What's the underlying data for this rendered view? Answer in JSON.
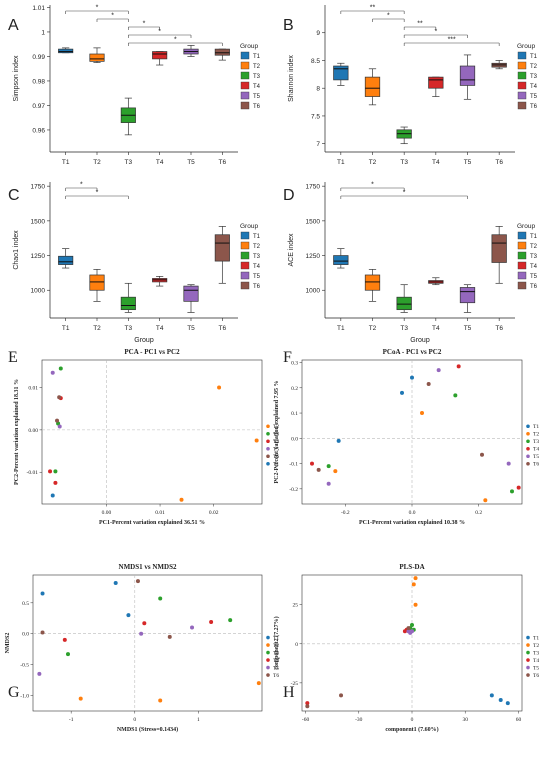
{
  "group_label": "Group",
  "legend_title": "Group",
  "colors": {
    "T1": "#1f77b4",
    "T2": "#ff7f0e",
    "T3": "#2ca02c",
    "T4": "#d62728",
    "T5": "#9467bd",
    "T6": "#8c564b"
  },
  "chart_data": [
    {
      "panel": "A",
      "type": "box",
      "ylabel": "Simpson index",
      "categories": [
        "T1",
        "T2",
        "T3",
        "T4",
        "T5",
        "T6"
      ],
      "ylim": [
        0.951,
        1.011
      ],
      "yticks": [
        0.96,
        0.97,
        0.98,
        0.99,
        1.0,
        1.01
      ],
      "yticklabels": [
        "0.96",
        "0.97",
        "0.98",
        "0.99",
        "1",
        "1.01"
      ],
      "boxes": [
        {
          "min": 0.9915,
          "q1": 0.9915,
          "median": 0.992,
          "q3": 0.993,
          "max": 0.9935
        },
        {
          "min": 0.9875,
          "q1": 0.988,
          "median": 0.989,
          "q3": 0.991,
          "max": 0.9935
        },
        {
          "min": 0.958,
          "q1": 0.963,
          "median": 0.966,
          "q3": 0.969,
          "max": 0.973
        },
        {
          "min": 0.9865,
          "q1": 0.989,
          "median": 0.991,
          "q3": 0.992,
          "max": 0.992
        },
        {
          "min": 0.99,
          "q1": 0.991,
          "median": 0.992,
          "q3": 0.993,
          "max": 0.9945
        },
        {
          "min": 0.9885,
          "q1": 0.9905,
          "median": 0.9915,
          "q3": 0.993,
          "max": 0.993
        }
      ],
      "significance": [
        {
          "from": 1,
          "to": 3,
          "label": "*"
        },
        {
          "from": 2,
          "to": 3,
          "label": "*"
        },
        {
          "from": 3,
          "to": 4,
          "label": "*"
        },
        {
          "from": 3,
          "to": 5,
          "label": "*"
        },
        {
          "from": 3,
          "to": 6,
          "label": "*"
        }
      ],
      "legend": [
        "T1",
        "T2",
        "T3",
        "T4",
        "T5",
        "T6"
      ]
    },
    {
      "panel": "B",
      "type": "box",
      "ylabel": "Shannon index",
      "categories": [
        "T1",
        "T2",
        "T3",
        "T4",
        "T5",
        "T6"
      ],
      "ylim": [
        6.85,
        9.5
      ],
      "yticks": [
        7,
        7.5,
        8,
        8.5,
        9
      ],
      "yticklabels": [
        "7",
        "7.5",
        "8",
        "8.5",
        "9"
      ],
      "boxes": [
        {
          "min": 8.05,
          "q1": 8.15,
          "median": 8.35,
          "q3": 8.4,
          "max": 8.45
        },
        {
          "min": 7.7,
          "q1": 7.85,
          "median": 8.0,
          "q3": 8.2,
          "max": 8.35
        },
        {
          "min": 7.0,
          "q1": 7.1,
          "median": 7.18,
          "q3": 7.25,
          "max": 7.3
        },
        {
          "min": 7.85,
          "q1": 8.0,
          "median": 8.15,
          "q3": 8.2,
          "max": 8.2
        },
        {
          "min": 7.8,
          "q1": 8.05,
          "median": 8.15,
          "q3": 8.4,
          "max": 8.6
        },
        {
          "min": 8.35,
          "q1": 8.38,
          "median": 8.42,
          "q3": 8.45,
          "max": 8.5
        }
      ],
      "significance": [
        {
          "from": 1,
          "to": 3,
          "label": "**"
        },
        {
          "from": 2,
          "to": 3,
          "label": "*"
        },
        {
          "from": 3,
          "to": 4,
          "label": "**"
        },
        {
          "from": 3,
          "to": 5,
          "label": "*"
        },
        {
          "from": 3,
          "to": 6,
          "label": "***"
        }
      ],
      "legend": [
        "T1",
        "T2",
        "T3",
        "T4",
        "T5",
        "T6"
      ]
    },
    {
      "panel": "C",
      "type": "box",
      "xlabel": "Group",
      "ylabel": "Chao1 index",
      "categories": [
        "T1",
        "T2",
        "T3",
        "T4",
        "T5",
        "T6"
      ],
      "ylim": [
        800,
        1780
      ],
      "yticks": [
        1000,
        1250,
        1500,
        1750
      ],
      "yticklabels": [
        "1000",
        "1250",
        "1500",
        "1750"
      ],
      "boxes": [
        {
          "min": 1160,
          "q1": 1185,
          "median": 1205,
          "q3": 1245,
          "max": 1300
        },
        {
          "min": 920,
          "q1": 1000,
          "median": 1060,
          "q3": 1110,
          "max": 1150
        },
        {
          "min": 840,
          "q1": 860,
          "median": 890,
          "q3": 950,
          "max": 1050
        },
        {
          "min": 1030,
          "q1": 1060,
          "median": 1075,
          "q3": 1085,
          "max": 1100
        },
        {
          "min": 840,
          "q1": 920,
          "median": 1000,
          "q3": 1030,
          "max": 1040
        },
        {
          "min": 1050,
          "q1": 1210,
          "median": 1340,
          "q3": 1400,
          "max": 1460
        }
      ],
      "significance": [
        {
          "from": 1,
          "to": 2,
          "label": "*"
        },
        {
          "from": 1,
          "to": 3,
          "label": "*"
        }
      ],
      "legend": [
        "T1",
        "T2",
        "T3",
        "T4",
        "T5",
        "T6"
      ]
    },
    {
      "panel": "D",
      "type": "box",
      "xlabel": "Group",
      "ylabel": "ACE index",
      "categories": [
        "T1",
        "T2",
        "T3",
        "T4",
        "T5",
        "T6"
      ],
      "ylim": [
        800,
        1780
      ],
      "yticks": [
        1000,
        1250,
        1500,
        1750
      ],
      "yticklabels": [
        "1000",
        "1250",
        "1500",
        "1750"
      ],
      "boxes": [
        {
          "min": 1160,
          "q1": 1185,
          "median": 1210,
          "q3": 1250,
          "max": 1300
        },
        {
          "min": 920,
          "q1": 1000,
          "median": 1060,
          "q3": 1110,
          "max": 1150
        },
        {
          "min": 840,
          "q1": 860,
          "median": 900,
          "q3": 950,
          "max": 1040
        },
        {
          "min": 1040,
          "q1": 1050,
          "median": 1060,
          "q3": 1070,
          "max": 1090
        },
        {
          "min": 840,
          "q1": 910,
          "median": 990,
          "q3": 1020,
          "max": 1040
        },
        {
          "min": 1050,
          "q1": 1200,
          "median": 1340,
          "q3": 1400,
          "max": 1460
        }
      ],
      "significance": [
        {
          "from": 1,
          "to": 3,
          "label": "*"
        },
        {
          "from": 1,
          "to": 5,
          "label": "*"
        }
      ],
      "legend": [
        "T1",
        "T2",
        "T3",
        "T4",
        "T5",
        "T6"
      ]
    },
    {
      "panel": "E",
      "type": "scatter",
      "title": "PCA - PC1 vs PC2",
      "xlabel": "PC1-Percent variation explained 36.51 %",
      "ylabel": "PC2-Percent variation explained 18.31 %",
      "xlim": [
        -0.012,
        0.029
      ],
      "ylim": [
        -0.0175,
        0.0165
      ],
      "xticks": [
        0.0,
        0.01,
        0.02
      ],
      "xticklabels": [
        "0.00",
        "0.01",
        "0.02"
      ],
      "yticks": [
        -0.01,
        0.0,
        0.01
      ],
      "yticklabels": [
        "-0.01",
        "0.00",
        "0.01"
      ],
      "legend": [
        "T2",
        "T3",
        "T4",
        "T5",
        "T6",
        "T1"
      ],
      "points": [
        {
          "g": "T1",
          "x": -0.01,
          "y": -0.0155
        },
        {
          "g": "T2",
          "x": 0.021,
          "y": 0.01
        },
        {
          "g": "T2",
          "x": 0.028,
          "y": -0.0025
        },
        {
          "g": "T2",
          "x": 0.014,
          "y": -0.0165
        },
        {
          "g": "T3",
          "x": -0.0085,
          "y": 0.0145
        },
        {
          "g": "T3",
          "x": -0.0095,
          "y": -0.0098
        },
        {
          "g": "T3",
          "x": -0.009,
          "y": 0.0015
        },
        {
          "g": "T4",
          "x": -0.0085,
          "y": 0.0075
        },
        {
          "g": "T4",
          "x": -0.0105,
          "y": -0.0098
        },
        {
          "g": "T4",
          "x": -0.0095,
          "y": -0.0125
        },
        {
          "g": "T5",
          "x": -0.01,
          "y": 0.0135
        },
        {
          "g": "T5",
          "x": -0.0087,
          "y": 0.0008
        },
        {
          "g": "T6",
          "x": -0.0088,
          "y": 0.0077
        },
        {
          "g": "T6",
          "x": -0.0092,
          "y": 0.0022
        }
      ]
    },
    {
      "panel": "F",
      "type": "scatter",
      "title": "PCoA - PC1 vs PC2",
      "xlabel": "PC1-Percent variation explained 10.38 %",
      "ylabel": "PC2-Percent variation explained 7.95 %",
      "xlim": [
        -0.33,
        0.33
      ],
      "ylim": [
        -0.26,
        0.31
      ],
      "xticks": [
        -0.2,
        0.0,
        0.2
      ],
      "xticklabels": [
        "-0.2",
        "0.0",
        "0.2"
      ],
      "yticks": [
        -0.2,
        -0.1,
        0.0,
        0.1,
        0.2,
        0.3
      ],
      "yticklabels": [
        "-0.2",
        "-0.1",
        "0.0",
        "0.1",
        "0.2",
        "0.3"
      ],
      "legend": [
        "T1",
        "T2",
        "T3",
        "T4",
        "T5",
        "T6"
      ],
      "points": [
        {
          "g": "T1",
          "x": -0.03,
          "y": 0.18
        },
        {
          "g": "T1",
          "x": 0.0,
          "y": 0.24
        },
        {
          "g": "T1",
          "x": -0.22,
          "y": -0.01
        },
        {
          "g": "T2",
          "x": 0.03,
          "y": 0.1
        },
        {
          "g": "T2",
          "x": -0.23,
          "y": -0.13
        },
        {
          "g": "T2",
          "x": 0.22,
          "y": -0.245
        },
        {
          "g": "T3",
          "x": 0.13,
          "y": 0.17
        },
        {
          "g": "T3",
          "x": -0.25,
          "y": -0.11
        },
        {
          "g": "T3",
          "x": 0.3,
          "y": -0.21
        },
        {
          "g": "T4",
          "x": 0.14,
          "y": 0.285
        },
        {
          "g": "T4",
          "x": -0.3,
          "y": -0.1
        },
        {
          "g": "T4",
          "x": 0.32,
          "y": -0.195
        },
        {
          "g": "T5",
          "x": 0.08,
          "y": 0.27
        },
        {
          "g": "T5",
          "x": -0.25,
          "y": -0.18
        },
        {
          "g": "T5",
          "x": 0.29,
          "y": -0.1
        },
        {
          "g": "T6",
          "x": 0.05,
          "y": 0.215
        },
        {
          "g": "T6",
          "x": -0.28,
          "y": -0.125
        },
        {
          "g": "T6",
          "x": 0.21,
          "y": -0.065
        }
      ]
    },
    {
      "panel": "G",
      "type": "scatter",
      "title": "NMDS1 vs NMDS2",
      "xlabel": "NMDS1 (Stress=0.1434)",
      "ylabel": "NMDS2",
      "xlim": [
        -1.6,
        2.0
      ],
      "ylim": [
        -1.25,
        0.95
      ],
      "xticks": [
        -1,
        0,
        1
      ],
      "xticklabels": [
        "-1",
        "0",
        "1"
      ],
      "yticks": [
        -1.0,
        -0.5,
        0.0,
        0.5
      ],
      "yticklabels": [
        "-1.0",
        "-0.5",
        "0.0",
        "0.5"
      ],
      "legend": [
        "T1",
        "T2",
        "T3",
        "T4",
        "T5",
        "T6"
      ],
      "points": [
        {
          "g": "T1",
          "x": -1.45,
          "y": 0.65
        },
        {
          "g": "T1",
          "x": -0.3,
          "y": 0.82
        },
        {
          "g": "T1",
          "x": -0.1,
          "y": 0.3
        },
        {
          "g": "T2",
          "x": -0.85,
          "y": -1.05
        },
        {
          "g": "T2",
          "x": 0.4,
          "y": -1.08
        },
        {
          "g": "T2",
          "x": 1.95,
          "y": -0.8
        },
        {
          "g": "T3",
          "x": -1.05,
          "y": -0.33
        },
        {
          "g": "T3",
          "x": 0.4,
          "y": 0.57
        },
        {
          "g": "T3",
          "x": 1.5,
          "y": 0.22
        },
        {
          "g": "T4",
          "x": -1.1,
          "y": -0.1
        },
        {
          "g": "T4",
          "x": 0.15,
          "y": 0.17
        },
        {
          "g": "T4",
          "x": 1.2,
          "y": 0.19
        },
        {
          "g": "T5",
          "x": -1.5,
          "y": -0.65
        },
        {
          "g": "T5",
          "x": 0.1,
          "y": 0.0
        },
        {
          "g": "T5",
          "x": 0.9,
          "y": 0.1
        },
        {
          "g": "T6",
          "x": -1.45,
          "y": 0.02
        },
        {
          "g": "T6",
          "x": 0.05,
          "y": 0.85
        },
        {
          "g": "T6",
          "x": 0.55,
          "y": -0.05
        }
      ]
    },
    {
      "panel": "H",
      "type": "scatter",
      "title": "PLS-DA",
      "xlabel": "component1 (7.60%)",
      "ylabel": "component2 (7.27%)",
      "xlim": [
        -62,
        62
      ],
      "ylim": [
        -43,
        44
      ],
      "xticks": [
        -60,
        -30,
        0,
        30,
        60
      ],
      "xticklabels": [
        "-60",
        "-30",
        "0",
        "30",
        "60"
      ],
      "yticks": [
        -25,
        0,
        25
      ],
      "yticklabels": [
        "-25",
        "0",
        "25"
      ],
      "legend": [
        "T1",
        "T2",
        "T3",
        "T4",
        "T5",
        "T6"
      ],
      "points": [
        {
          "g": "T1",
          "x": 45,
          "y": -33
        },
        {
          "g": "T1",
          "x": 50,
          "y": -36
        },
        {
          "g": "T1",
          "x": 54,
          "y": -38
        },
        {
          "g": "T2",
          "x": 2,
          "y": 42
        },
        {
          "g": "T2",
          "x": 1,
          "y": 38
        },
        {
          "g": "T2",
          "x": 2,
          "y": 25
        },
        {
          "g": "T3",
          "x": 0,
          "y": 12
        },
        {
          "g": "T3",
          "x": -1,
          "y": 10
        },
        {
          "g": "T3",
          "x": 1,
          "y": 9
        },
        {
          "g": "T4",
          "x": -3,
          "y": 9
        },
        {
          "g": "T4",
          "x": -4,
          "y": 8
        },
        {
          "g": "T4",
          "x": -59,
          "y": -38
        },
        {
          "g": "T5",
          "x": -2,
          "y": 8
        },
        {
          "g": "T5",
          "x": -1,
          "y": 7
        },
        {
          "g": "T5",
          "x": 0,
          "y": 8
        },
        {
          "g": "T6",
          "x": -59,
          "y": -40
        },
        {
          "g": "T6",
          "x": -40,
          "y": -33
        },
        {
          "g": "T6",
          "x": -2,
          "y": 10
        }
      ]
    }
  ]
}
